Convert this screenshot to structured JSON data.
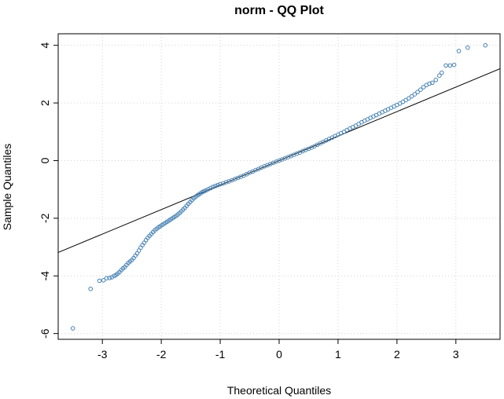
{
  "chart_data": {
    "type": "scatter",
    "title": "norm - QQ Plot",
    "xlabel": "Theoretical Quantiles",
    "ylabel": "Sample Quantiles",
    "xlim": [
      -3.75,
      3.75
    ],
    "ylim": [
      -6.2,
      4.4
    ],
    "xticks": [
      -3,
      -2,
      -1,
      0,
      1,
      2,
      3
    ],
    "yticks": [
      -6,
      -4,
      -2,
      0,
      2,
      4
    ],
    "grid": true,
    "point_color": "#4682b4",
    "reference_line": {
      "slope": 0.85,
      "intercept": 0.0
    },
    "points": [
      [
        -3.5,
        -5.82
      ],
      [
        -3.2,
        -4.45
      ],
      [
        -3.05,
        -4.17
      ],
      [
        -2.98,
        -4.15
      ],
      [
        -2.93,
        -4.08
      ],
      [
        -2.88,
        -4.07
      ],
      [
        -2.84,
        -4.05
      ],
      [
        -2.8,
        -4.0
      ],
      [
        -2.77,
        -3.97
      ],
      [
        -2.74,
        -3.92
      ],
      [
        -2.71,
        -3.87
      ],
      [
        -2.68,
        -3.8
      ],
      [
        -2.65,
        -3.74
      ],
      [
        -2.62,
        -3.69
      ],
      [
        -2.59,
        -3.62
      ],
      [
        -2.56,
        -3.55
      ],
      [
        -2.53,
        -3.5
      ],
      [
        -2.5,
        -3.45
      ],
      [
        -2.47,
        -3.38
      ],
      [
        -2.44,
        -3.3
      ],
      [
        -2.41,
        -3.22
      ],
      [
        -2.38,
        -3.12
      ],
      [
        -2.35,
        -3.02
      ],
      [
        -2.32,
        -2.93
      ],
      [
        -2.29,
        -2.85
      ],
      [
        -2.26,
        -2.76
      ],
      [
        -2.23,
        -2.68
      ],
      [
        -2.2,
        -2.61
      ],
      [
        -2.17,
        -2.55
      ],
      [
        -2.14,
        -2.48
      ],
      [
        -2.11,
        -2.42
      ],
      [
        -2.08,
        -2.37
      ],
      [
        -2.05,
        -2.32
      ],
      [
        -2.02,
        -2.28
      ],
      [
        -1.99,
        -2.24
      ],
      [
        -1.96,
        -2.2
      ],
      [
        -1.93,
        -2.16
      ],
      [
        -1.9,
        -2.12
      ],
      [
        -1.87,
        -2.08
      ],
      [
        -1.84,
        -2.04
      ],
      [
        -1.81,
        -2.0
      ],
      [
        -1.78,
        -1.96
      ],
      [
        -1.75,
        -1.92
      ],
      [
        -1.72,
        -1.87
      ],
      [
        -1.69,
        -1.82
      ],
      [
        -1.66,
        -1.76
      ],
      [
        -1.63,
        -1.7
      ],
      [
        -1.6,
        -1.64
      ],
      [
        -1.57,
        -1.57
      ],
      [
        -1.54,
        -1.5
      ],
      [
        -1.51,
        -1.44
      ],
      [
        -1.48,
        -1.37
      ],
      [
        -1.45,
        -1.31
      ],
      [
        -1.42,
        -1.26
      ],
      [
        -1.39,
        -1.21
      ],
      [
        -1.36,
        -1.17
      ],
      [
        -1.33,
        -1.13
      ],
      [
        -1.3,
        -1.09
      ],
      [
        -1.27,
        -1.06
      ],
      [
        -1.24,
        -1.03
      ],
      [
        -1.2,
        -0.99
      ],
      [
        -1.16,
        -0.95
      ],
      [
        -1.12,
        -0.91
      ],
      [
        -1.08,
        -0.88
      ],
      [
        -1.04,
        -0.85
      ],
      [
        -1.0,
        -0.82
      ],
      [
        -0.95,
        -0.79
      ],
      [
        -0.9,
        -0.75
      ],
      [
        -0.85,
        -0.72
      ],
      [
        -0.8,
        -0.68
      ],
      [
        -0.75,
        -0.64
      ],
      [
        -0.7,
        -0.6
      ],
      [
        -0.65,
        -0.56
      ],
      [
        -0.6,
        -0.52
      ],
      [
        -0.55,
        -0.47
      ],
      [
        -0.5,
        -0.42
      ],
      [
        -0.45,
        -0.38
      ],
      [
        -0.4,
        -0.33
      ],
      [
        -0.35,
        -0.29
      ],
      [
        -0.3,
        -0.24
      ],
      [
        -0.25,
        -0.2
      ],
      [
        -0.2,
        -0.16
      ],
      [
        -0.15,
        -0.12
      ],
      [
        -0.1,
        -0.08
      ],
      [
        -0.05,
        -0.04
      ],
      [
        0.0,
        0.0
      ],
      [
        0.05,
        0.04
      ],
      [
        0.1,
        0.08
      ],
      [
        0.15,
        0.12
      ],
      [
        0.2,
        0.16
      ],
      [
        0.25,
        0.2
      ],
      [
        0.3,
        0.24
      ],
      [
        0.35,
        0.28
      ],
      [
        0.4,
        0.33
      ],
      [
        0.45,
        0.37
      ],
      [
        0.5,
        0.41
      ],
      [
        0.55,
        0.45
      ],
      [
        0.6,
        0.5
      ],
      [
        0.65,
        0.55
      ],
      [
        0.7,
        0.6
      ],
      [
        0.75,
        0.65
      ],
      [
        0.8,
        0.7
      ],
      [
        0.85,
        0.75
      ],
      [
        0.9,
        0.8
      ],
      [
        0.95,
        0.85
      ],
      [
        1.0,
        0.9
      ],
      [
        1.05,
        0.95
      ],
      [
        1.1,
        1.0
      ],
      [
        1.15,
        1.06
      ],
      [
        1.2,
        1.11
      ],
      [
        1.25,
        1.16
      ],
      [
        1.3,
        1.21
      ],
      [
        1.35,
        1.27
      ],
      [
        1.4,
        1.33
      ],
      [
        1.45,
        1.38
      ],
      [
        1.5,
        1.43
      ],
      [
        1.55,
        1.48
      ],
      [
        1.6,
        1.53
      ],
      [
        1.65,
        1.58
      ],
      [
        1.7,
        1.63
      ],
      [
        1.75,
        1.68
      ],
      [
        1.8,
        1.73
      ],
      [
        1.85,
        1.78
      ],
      [
        1.9,
        1.83
      ],
      [
        1.95,
        1.88
      ],
      [
        2.0,
        1.93
      ],
      [
        2.05,
        1.98
      ],
      [
        2.1,
        2.04
      ],
      [
        2.15,
        2.1
      ],
      [
        2.2,
        2.16
      ],
      [
        2.25,
        2.23
      ],
      [
        2.3,
        2.3
      ],
      [
        2.35,
        2.38
      ],
      [
        2.4,
        2.46
      ],
      [
        2.45,
        2.55
      ],
      [
        2.5,
        2.62
      ],
      [
        2.55,
        2.67
      ],
      [
        2.6,
        2.7
      ],
      [
        2.66,
        2.8
      ],
      [
        2.72,
        2.95
      ],
      [
        2.76,
        3.05
      ],
      [
        2.83,
        3.3
      ],
      [
        2.9,
        3.3
      ],
      [
        2.97,
        3.32
      ],
      [
        3.05,
        3.8
      ],
      [
        3.2,
        3.92
      ],
      [
        3.5,
        4.0
      ]
    ]
  }
}
